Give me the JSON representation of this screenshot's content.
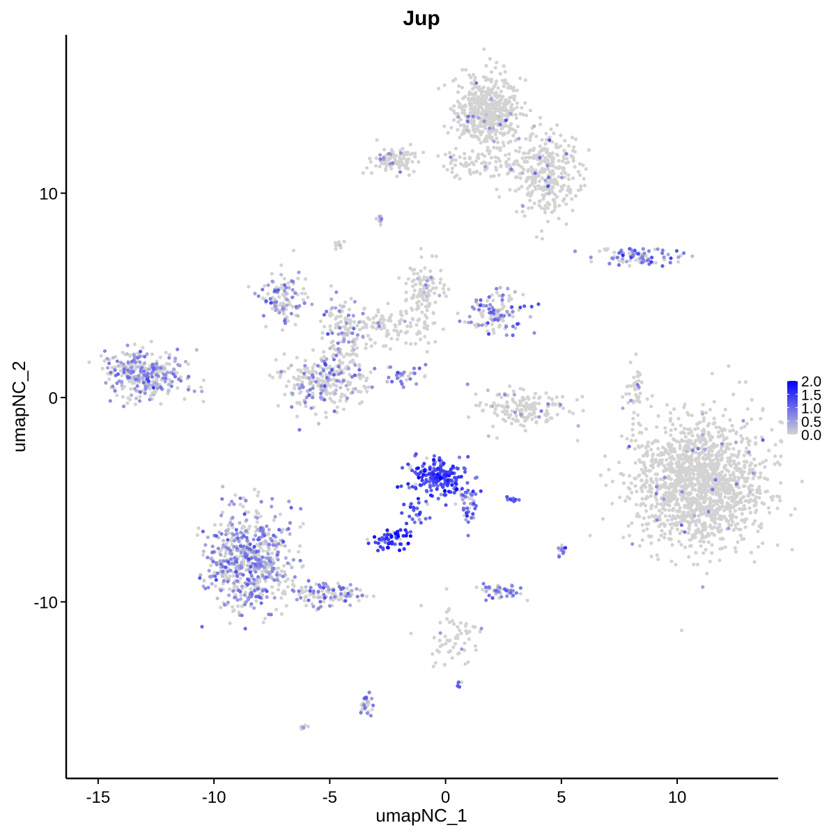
{
  "chart_data": {
    "type": "scatter",
    "title": "Jup",
    "xlabel": "umapNC_1",
    "ylabel": "umapNC_2",
    "xlim": [
      -16.38,
      14.36
    ],
    "ylim": [
      -18.64,
      17.75
    ],
    "xticks": [
      -15,
      -10,
      -5,
      0,
      5,
      10
    ],
    "xtick_labels": [
      "-15",
      "-10",
      "-5",
      "0",
      "5",
      "10"
    ],
    "yticks": [
      -10,
      0,
      10
    ],
    "ytick_labels": [
      "-10",
      "0",
      "10"
    ],
    "grid": false,
    "legend": {
      "placement": "right",
      "min": 0,
      "max": 2.0,
      "low_color": "#D3D3D3",
      "high_color": "#0000FF",
      "ticks": [
        0,
        0.5,
        1.0,
        1.5,
        2.0
      ],
      "tick_labels": [
        "0.0",
        "0.5",
        "1.0",
        "1.5",
        "2.0"
      ]
    },
    "note": "Point clouds summarized as clusters: center (data units), spread (sd), point count, fraction of cells expressing, mean expression of expressing cells",
    "clusters": [
      {
        "cx": 1.8,
        "cy": 14.0,
        "sx": 0.7,
        "sy": 0.8,
        "n": 500,
        "frac": 0.03,
        "mean": 0.6
      },
      {
        "cx": 4.3,
        "cy": 11.0,
        "sx": 0.8,
        "sy": 1.0,
        "n": 320,
        "frac": 0.05,
        "mean": 0.6
      },
      {
        "cx": 1.4,
        "cy": 11.5,
        "sx": 0.8,
        "sy": 0.4,
        "n": 80,
        "frac": 0.03,
        "mean": 0.6
      },
      {
        "cx": -2.2,
        "cy": 11.6,
        "sx": 0.6,
        "sy": 0.3,
        "n": 100,
        "frac": 0.06,
        "mean": 0.7
      },
      {
        "cx": -2.8,
        "cy": 8.7,
        "sx": 0.1,
        "sy": 0.1,
        "n": 10,
        "frac": 0.3,
        "mean": 0.5
      },
      {
        "cx": -4.6,
        "cy": 7.5,
        "sx": 0.1,
        "sy": 0.15,
        "n": 10,
        "frac": 0.1,
        "mean": 0.5
      },
      {
        "cx": 8.3,
        "cy": 6.9,
        "sx": 0.9,
        "sy": 0.2,
        "n": 90,
        "frac": 0.5,
        "mean": 0.8
      },
      {
        "cx": -13.0,
        "cy": 1.1,
        "sx": 0.9,
        "sy": 0.6,
        "n": 320,
        "frac": 0.5,
        "mean": 0.6
      },
      {
        "cx": -7.0,
        "cy": 4.9,
        "sx": 0.5,
        "sy": 0.6,
        "n": 110,
        "frac": 0.5,
        "mean": 0.6
      },
      {
        "cx": -5.3,
        "cy": 0.8,
        "sx": 0.9,
        "sy": 0.7,
        "n": 260,
        "frac": 0.3,
        "mean": 0.6
      },
      {
        "cx": -4.5,
        "cy": 3.0,
        "sx": 0.4,
        "sy": 1.0,
        "n": 110,
        "frac": 0.35,
        "mean": 0.6
      },
      {
        "cx": -2.4,
        "cy": 3.4,
        "sx": 1.1,
        "sy": 0.5,
        "n": 130,
        "frac": 0.08,
        "mean": 0.5
      },
      {
        "cx": -0.9,
        "cy": 5.3,
        "sx": 0.4,
        "sy": 0.6,
        "n": 100,
        "frac": 0.06,
        "mean": 0.5
      },
      {
        "cx": 2.2,
        "cy": 4.2,
        "sx": 0.6,
        "sy": 0.5,
        "n": 130,
        "frac": 0.5,
        "mean": 0.7
      },
      {
        "cx": -1.8,
        "cy": 1.2,
        "sx": 0.4,
        "sy": 0.3,
        "n": 30,
        "frac": 0.7,
        "mean": 0.7
      },
      {
        "cx": 3.4,
        "cy": -0.6,
        "sx": 0.9,
        "sy": 0.5,
        "n": 160,
        "frac": 0.06,
        "mean": 0.5
      },
      {
        "cx": 8.2,
        "cy": 0.3,
        "sx": 0.2,
        "sy": 0.7,
        "n": 40,
        "frac": 0.1,
        "mean": 0.6
      },
      {
        "cx": 11.0,
        "cy": -4.2,
        "sx": 1.4,
        "sy": 1.5,
        "n": 1500,
        "frac": 0.02,
        "mean": 0.6
      },
      {
        "cx": -0.2,
        "cy": -3.9,
        "sx": 0.6,
        "sy": 0.5,
        "n": 200,
        "frac": 0.95,
        "mean": 1.3
      },
      {
        "cx": -2.4,
        "cy": -6.9,
        "sx": 0.35,
        "sy": 0.25,
        "n": 60,
        "frac": 0.95,
        "mean": 1.4
      },
      {
        "cx": -1.3,
        "cy": -5.6,
        "sx": 0.3,
        "sy": 0.4,
        "n": 25,
        "frac": 0.9,
        "mean": 1.1
      },
      {
        "cx": 1.0,
        "cy": -5.3,
        "sx": 0.2,
        "sy": 0.5,
        "n": 40,
        "frac": 0.8,
        "mean": 0.8
      },
      {
        "cx": -8.5,
        "cy": -8.0,
        "sx": 0.9,
        "sy": 1.2,
        "n": 620,
        "frac": 0.5,
        "mean": 0.6
      },
      {
        "cx": -5.2,
        "cy": -9.6,
        "sx": 0.8,
        "sy": 0.3,
        "n": 110,
        "frac": 0.4,
        "mean": 0.6
      },
      {
        "cx": 2.9,
        "cy": -5.0,
        "sx": 0.15,
        "sy": 0.05,
        "n": 10,
        "frac": 0.9,
        "mean": 1.0
      },
      {
        "cx": 5.0,
        "cy": -7.4,
        "sx": 0.1,
        "sy": 0.2,
        "n": 15,
        "frac": 0.7,
        "mean": 0.8
      },
      {
        "cx": 2.4,
        "cy": -9.5,
        "sx": 0.4,
        "sy": 0.2,
        "n": 45,
        "frac": 0.6,
        "mean": 0.7
      },
      {
        "cx": 0.4,
        "cy": -11.6,
        "sx": 0.7,
        "sy": 0.9,
        "n": 60,
        "frac": 0.05,
        "mean": 0.6
      },
      {
        "cx": -3.4,
        "cy": -14.9,
        "sx": 0.15,
        "sy": 0.35,
        "n": 30,
        "frac": 0.6,
        "mean": 0.7
      },
      {
        "cx": -6.1,
        "cy": -16.1,
        "sx": 0.08,
        "sy": 0.05,
        "n": 6,
        "frac": 0.7,
        "mean": 0.6
      },
      {
        "cx": 0.6,
        "cy": -14.0,
        "sx": 0.06,
        "sy": 0.06,
        "n": 5,
        "frac": 0.8,
        "mean": 0.8
      }
    ]
  }
}
